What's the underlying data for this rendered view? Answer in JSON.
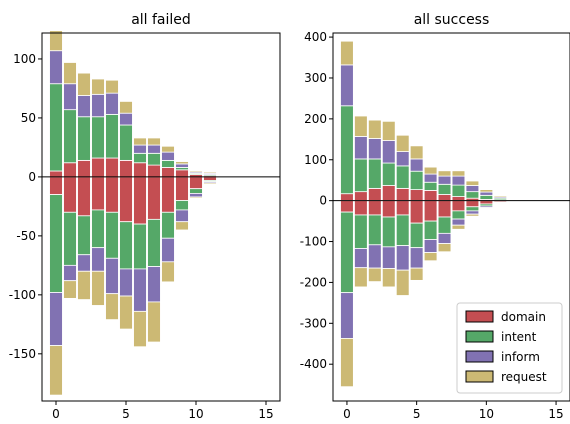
{
  "colors": {
    "domain": "#c44e52",
    "intent": "#55a868",
    "inform": "#8172b2",
    "request": "#ccb974"
  },
  "chart_data": [
    {
      "type": "bar",
      "title": "all failed",
      "xlabel": "",
      "ylabel": "",
      "xlim": [
        -1,
        16
      ],
      "ylim": [
        -190,
        122
      ],
      "xticks": [
        0,
        5,
        10,
        15
      ],
      "yticks": [
        -150,
        -100,
        -50,
        0,
        50,
        100
      ],
      "x": [
        0,
        1,
        2,
        3,
        4,
        5,
        6,
        7,
        8,
        9,
        10,
        11
      ],
      "series": [
        {
          "name": "domain",
          "values": [
            5,
            12,
            14,
            16,
            16,
            14,
            12,
            10,
            8,
            6,
            2,
            1
          ]
        },
        {
          "name": "intent",
          "values": [
            74,
            45,
            37,
            35,
            37,
            30,
            8,
            10,
            6,
            2,
            1,
            1
          ]
        },
        {
          "name": "inform",
          "values": [
            28,
            22,
            18,
            19,
            18,
            10,
            7,
            7,
            7,
            3,
            1,
            1
          ]
        },
        {
          "name": "request",
          "values": [
            17,
            18,
            19,
            13,
            11,
            10,
            6,
            6,
            5,
            2,
            1,
            1
          ]
        }
      ],
      "neg_series": [
        {
          "name": "domain",
          "values": [
            -15,
            -30,
            -33,
            -28,
            -30,
            -38,
            -40,
            -36,
            -30,
            -20,
            -10,
            -3
          ]
        },
        {
          "name": "intent",
          "values": [
            -83,
            -45,
            -33,
            -32,
            -39,
            -40,
            -38,
            -40,
            -22,
            -8,
            -4,
            -1
          ]
        },
        {
          "name": "inform",
          "values": [
            -45,
            -13,
            -14,
            -20,
            -30,
            -23,
            -36,
            -30,
            -20,
            -10,
            -3,
            -1
          ]
        },
        {
          "name": "request",
          "values": [
            -42,
            -15,
            -24,
            -29,
            -22,
            -28,
            -30,
            -34,
            -17,
            -7,
            -1,
            -1
          ]
        }
      ]
    },
    {
      "type": "bar",
      "title": "all success",
      "xlabel": "",
      "ylabel": "",
      "xlim": [
        -1,
        16
      ],
      "ylim": [
        -490,
        410
      ],
      "xticks": [
        0,
        5,
        10,
        15
      ],
      "yticks": [
        -400,
        -300,
        -200,
        -100,
        0,
        100,
        200,
        300,
        400
      ],
      "x": [
        0,
        1,
        2,
        3,
        4,
        5,
        6,
        7,
        8,
        9,
        10,
        11
      ],
      "legend": {
        "entries": [
          "domain",
          "intent",
          "inform",
          "request"
        ],
        "loc": "lower right"
      },
      "series": [
        {
          "name": "domain",
          "values": [
            17,
            22,
            30,
            37,
            30,
            27,
            25,
            15,
            10,
            6,
            3,
            2
          ]
        },
        {
          "name": "intent",
          "values": [
            215,
            80,
            72,
            55,
            55,
            45,
            20,
            25,
            28,
            16,
            10,
            4
          ]
        },
        {
          "name": "inform",
          "values": [
            100,
            55,
            50,
            55,
            35,
            30,
            20,
            20,
            22,
            15,
            8,
            3
          ]
        },
        {
          "name": "request",
          "values": [
            58,
            50,
            45,
            47,
            40,
            32,
            17,
            13,
            13,
            11,
            6,
            3
          ]
        }
      ],
      "neg_series": [
        {
          "name": "domain",
          "values": [
            -28,
            -35,
            -35,
            -40,
            -35,
            -55,
            -50,
            -40,
            -25,
            -15,
            -8,
            -3
          ]
        },
        {
          "name": "intent",
          "values": [
            -197,
            -82,
            -73,
            -73,
            -75,
            -60,
            -45,
            -40,
            -20,
            -10,
            -5,
            -2
          ]
        },
        {
          "name": "inform",
          "values": [
            -112,
            -47,
            -57,
            -53,
            -60,
            -50,
            -32,
            -25,
            -15,
            -8,
            -4,
            -2
          ]
        },
        {
          "name": "request",
          "values": [
            -118,
            -47,
            -33,
            -45,
            -62,
            -30,
            -20,
            -20,
            -10,
            -5,
            -2,
            -1
          ]
        }
      ]
    }
  ]
}
